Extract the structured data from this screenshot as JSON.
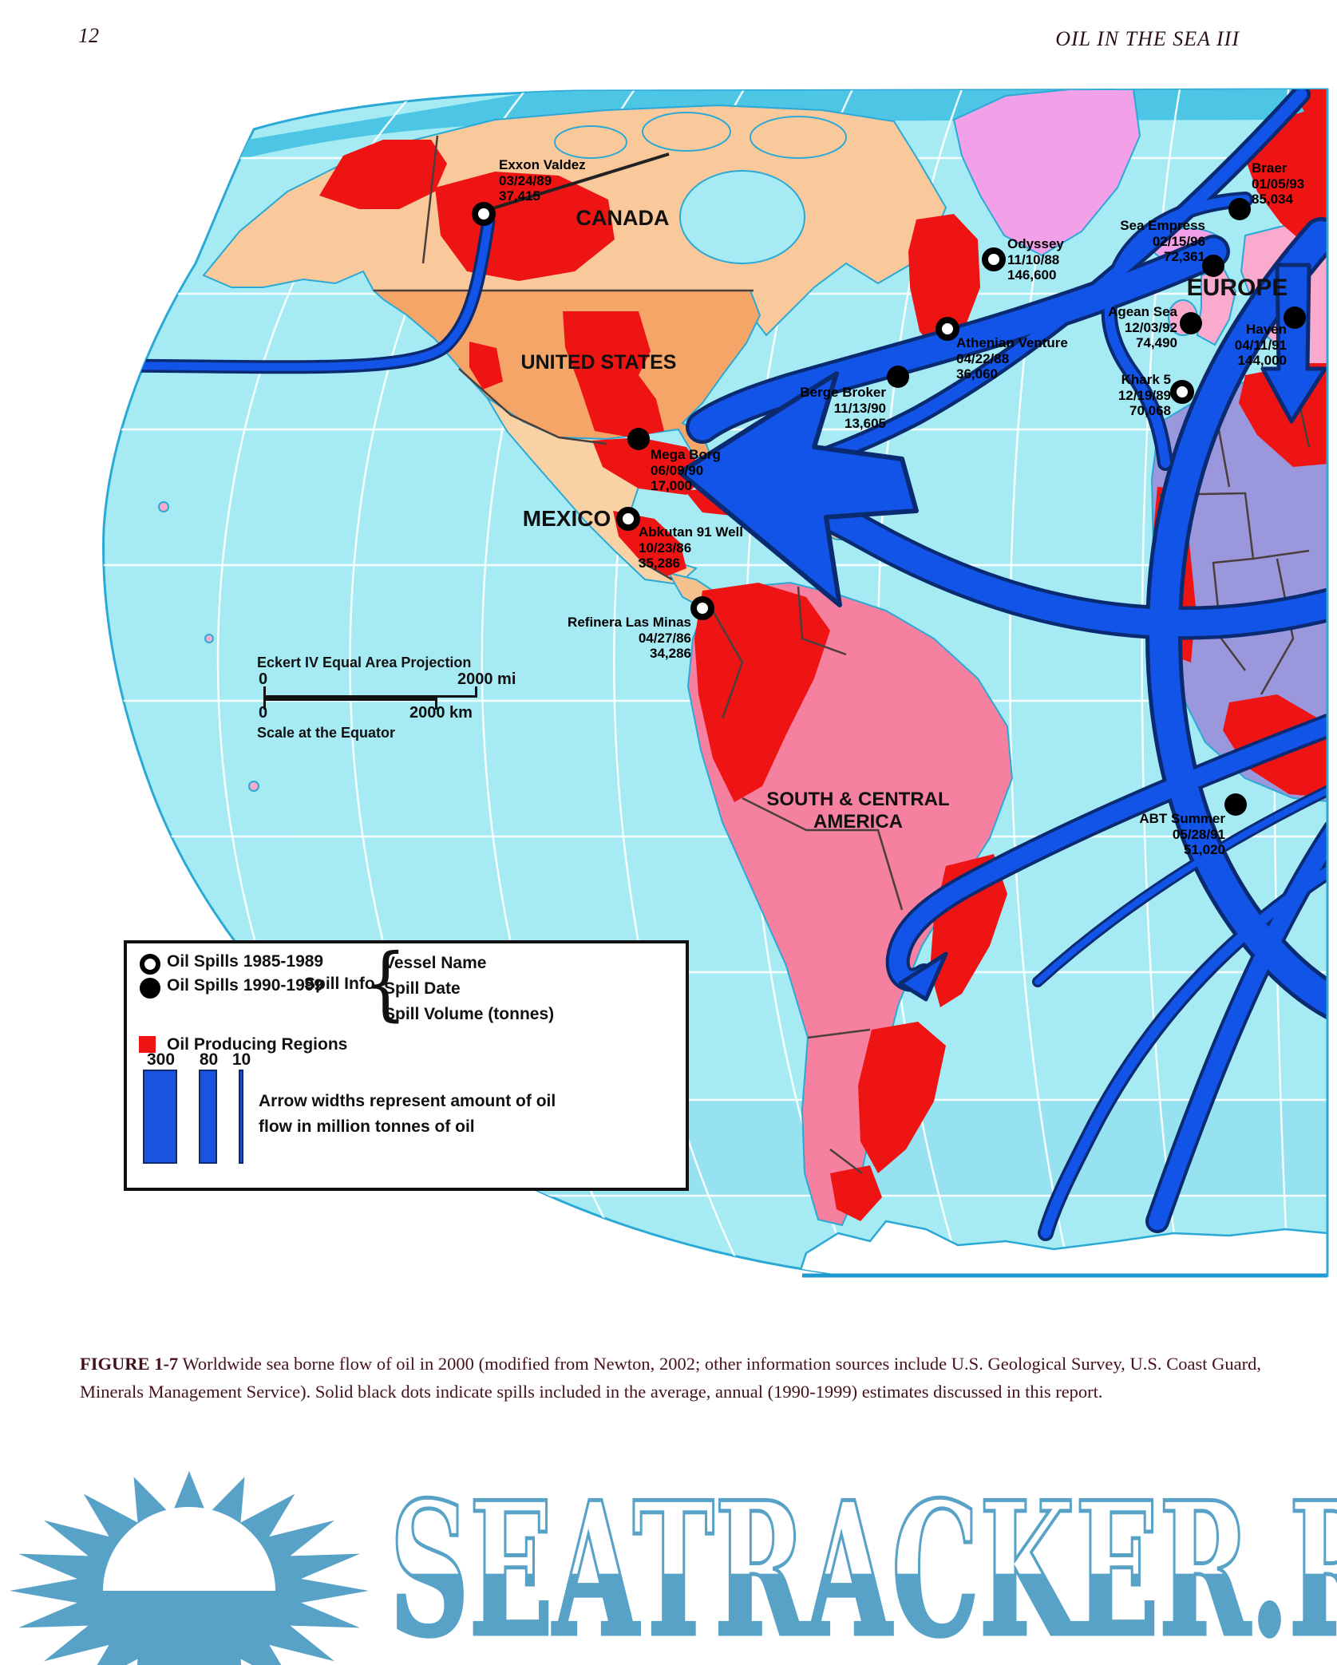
{
  "page": {
    "number": "12",
    "running_title": "OIL IN THE SEA III"
  },
  "map": {
    "regions": {
      "canada": "CANADA",
      "united_states": "UNITED STATES",
      "mexico": "MEXICO",
      "europe": "EUROPE",
      "south_central_1": "SOUTH & CENTRAL",
      "south_central_2": "AMERICA"
    },
    "spills": [
      {
        "name": "Exxon Valdez",
        "date": "03/24/89",
        "volume": "37,415",
        "marker": "open"
      },
      {
        "name": "Odyssey",
        "date": "11/10/88",
        "volume": "146,600",
        "marker": "open"
      },
      {
        "name": "Athenian Venture",
        "date": "04/22/88",
        "volume": "36,060",
        "marker": "open"
      },
      {
        "name": "Berge Broker",
        "date": "11/13/90",
        "volume": "13,605",
        "marker": "filled"
      },
      {
        "name": "Mega Borg",
        "date": "06/09/90",
        "volume": "17,000",
        "marker": "filled"
      },
      {
        "name": "Abkutan 91 Well",
        "date": "10/23/86",
        "volume": "35,286",
        "marker": "open"
      },
      {
        "name": "Refinera Las Minas",
        "date": "04/27/86",
        "volume": "34,286",
        "marker": "open"
      },
      {
        "name": "Braer",
        "date": "01/05/93",
        "volume": "85,034",
        "marker": "filled"
      },
      {
        "name": "Sea Empress",
        "date": "02/15/96",
        "volume": "72,361",
        "marker": "filled"
      },
      {
        "name": "Agean Sea",
        "date": "12/03/92",
        "volume": "74,490",
        "marker": "filled"
      },
      {
        "name": "Haven",
        "date": "04/11/91",
        "volume": "144,000",
        "marker": "filled"
      },
      {
        "name": "Khark 5",
        "date": "12/19/89",
        "volume": "70,068",
        "marker": "open"
      },
      {
        "name": "ABT Summer",
        "date": "05/28/91",
        "volume": "51,020",
        "marker": "filled"
      }
    ],
    "scale": {
      "projection": "Eckert IV Equal Area Projection",
      "mi_zero": "0",
      "mi_label": "2000 mi",
      "km_zero": "0",
      "km_label": "2000 km",
      "note": "Scale at the Equator"
    },
    "legend": {
      "open_label": "Oil Spills 1985-1989",
      "filled_label": "Oil Spills 1990-1999",
      "spill_info_label": "Spill Info",
      "brace": "{",
      "info_line_1": "Vessel Name",
      "info_line_2": "Spill Date",
      "info_line_3": "Spill Volume (tonnes)",
      "producing_label": "Oil Producing Regions",
      "bar_value_1": "300",
      "bar_value_2": "80",
      "bar_value_3": "10",
      "arrow_note_1": "Arrow widths represent amount of oil",
      "arrow_note_2": "flow in million tonnes of oil"
    }
  },
  "caption": {
    "figure_label": "FIGURE 1-7",
    "text": " Worldwide sea borne flow of oil in 2000 (modified from Newton, 2002; other information sources include U.S. Geological Survey, U.S. Coast Guard, Minerals Management Service). Solid black dots indicate spills included in the average, annual (1990-1999) estimates discussed in this report."
  },
  "watermark": {
    "text": "SEATRACKER.RU"
  },
  "colors": {
    "ocean": "#a6ebf4",
    "polar_band": "#4dc6e6",
    "south_band": "#96e2f1",
    "arrow_fill": "#1253e8",
    "arrow_edge": "#0a2b72",
    "producing_red": "#ee1414",
    "caption_text": "#451118",
    "watermark_blue": "#58a2c8"
  }
}
